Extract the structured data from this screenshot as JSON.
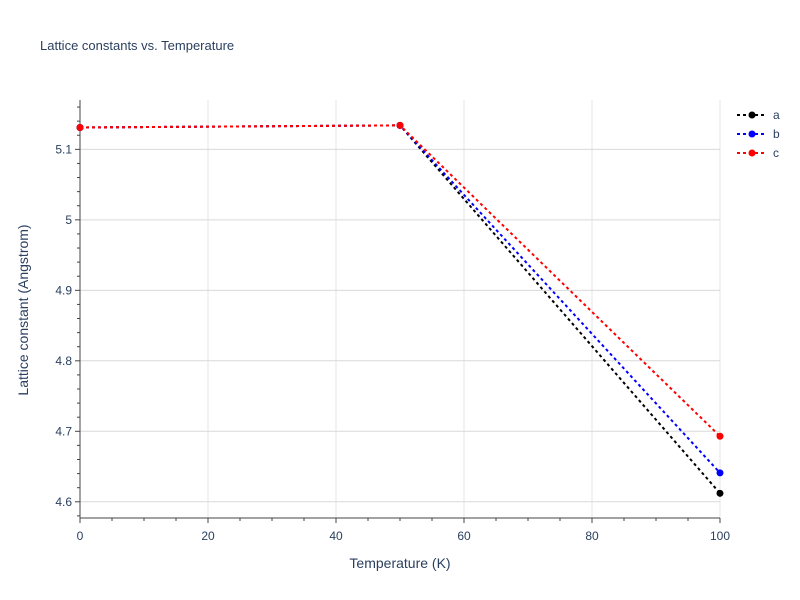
{
  "chart_data": {
    "type": "line",
    "title": "Lattice constants vs. Temperature",
    "xlabel": "Temperature (K)",
    "ylabel": "Lattice constant (Angstrom)",
    "x": [
      0,
      50,
      100
    ],
    "xlim": [
      0,
      100
    ],
    "ylim": [
      4.577,
      5.17
    ],
    "xticks": [
      0,
      20,
      40,
      60,
      80,
      100
    ],
    "yticks": [
      4.6,
      4.7,
      4.8,
      4.9,
      5,
      5.1
    ],
    "xtick_labels": [
      "0",
      "20",
      "40",
      "60",
      "80",
      "100"
    ],
    "ytick_labels": [
      "4.6",
      "4.7",
      "4.8",
      "4.9",
      "5",
      "5.1"
    ],
    "grid": true,
    "legend_position": "top-right",
    "series": [
      {
        "name": "a",
        "color": "#000000",
        "values": [
          5.131,
          5.134,
          4.612
        ]
      },
      {
        "name": "b",
        "color": "#0000ff",
        "values": [
          5.131,
          5.134,
          4.641
        ]
      },
      {
        "name": "c",
        "color": "#ff0000",
        "values": [
          5.131,
          5.134,
          4.693
        ]
      }
    ]
  }
}
